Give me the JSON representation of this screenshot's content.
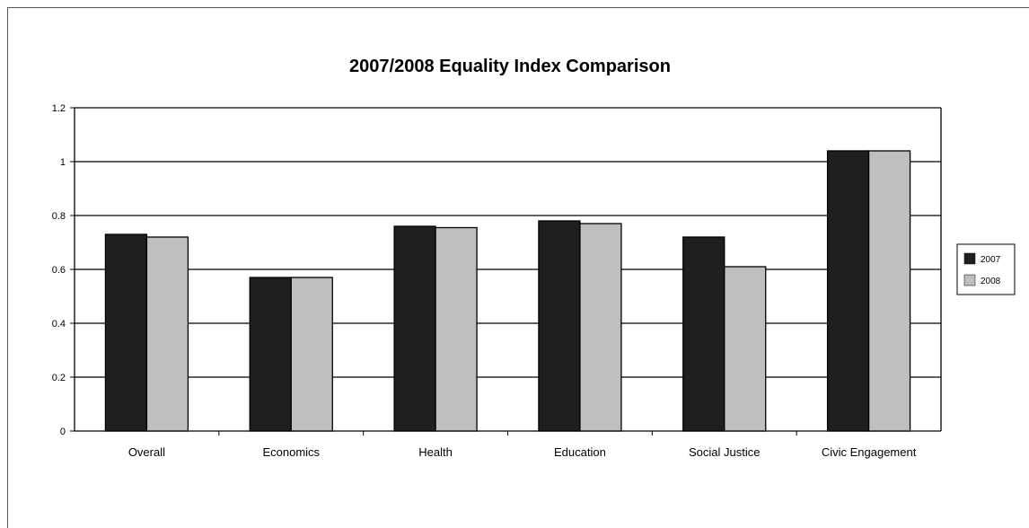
{
  "chart_data": {
    "type": "bar",
    "title": "2007/2008 Equality Index Comparison",
    "xlabel": "",
    "ylabel": "",
    "categories": [
      "Overall",
      "Economics",
      "Health",
      "Education",
      "Social Justice",
      "Civic Engagement"
    ],
    "series": [
      {
        "name": "2007",
        "values": [
          0.73,
          0.57,
          0.76,
          0.78,
          0.72,
          1.04
        ],
        "color": "#1f1f1f"
      },
      {
        "name": "2008",
        "values": [
          0.72,
          0.57,
          0.755,
          0.77,
          0.61,
          1.04
        ],
        "color": "#bfbfbf"
      }
    ],
    "ylim": [
      0,
      1.2
    ],
    "yticks": [
      "0",
      "0.2",
      "0.4",
      "0.6",
      "0.8",
      "1",
      "1.2"
    ],
    "grid": true,
    "legend_position": "right"
  }
}
